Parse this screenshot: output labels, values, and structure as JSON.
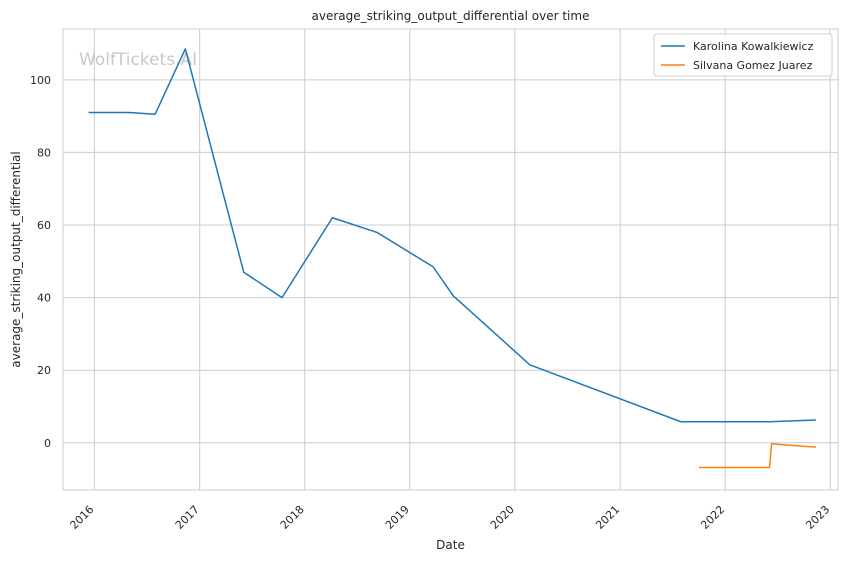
{
  "chart_data": {
    "type": "line",
    "title": "average_striking_output_differential over time",
    "xlabel": "Date",
    "ylabel": "average_striking_output_differential",
    "watermark": "WolfTickets.AI",
    "x_ticks": [
      "2016",
      "2017",
      "2018",
      "2019",
      "2020",
      "2021",
      "2022",
      "2023"
    ],
    "y_ticks": [
      0,
      20,
      40,
      60,
      80,
      100
    ],
    "xlim": [
      "2015-09-14",
      "2023-01-28"
    ],
    "ylim": [
      -13,
      114
    ],
    "grid": true,
    "legend_position": "top-right",
    "series": [
      {
        "name": "Karolina Kowalkiewicz",
        "color": "#1f77b4",
        "points": [
          {
            "x": "2015-12-12",
            "y": 91.0
          },
          {
            "x": "2016-05-01",
            "y": 91.0
          },
          {
            "x": "2016-07-30",
            "y": 90.5
          },
          {
            "x": "2016-11-12",
            "y": 108.5
          },
          {
            "x": "2017-06-03",
            "y": 47.0
          },
          {
            "x": "2017-10-14",
            "y": 40.0
          },
          {
            "x": "2018-04-07",
            "y": 62.0
          },
          {
            "x": "2018-09-08",
            "y": 58.0
          },
          {
            "x": "2019-03-23",
            "y": 48.5
          },
          {
            "x": "2019-06-01",
            "y": 40.5
          },
          {
            "x": "2020-02-22",
            "y": 21.5
          },
          {
            "x": "2021-07-31",
            "y": 5.8
          },
          {
            "x": "2022-06-04",
            "y": 5.8
          },
          {
            "x": "2022-11-12",
            "y": 6.3
          }
        ]
      },
      {
        "name": "Silvana Gomez Juarez",
        "color": "#ff7f0e",
        "points": [
          {
            "x": "2021-10-02",
            "y": -6.8
          },
          {
            "x": "2022-06-04",
            "y": -6.8
          },
          {
            "x": "2022-06-11",
            "y": -0.3
          },
          {
            "x": "2022-11-12",
            "y": -1.2
          }
        ]
      }
    ]
  }
}
